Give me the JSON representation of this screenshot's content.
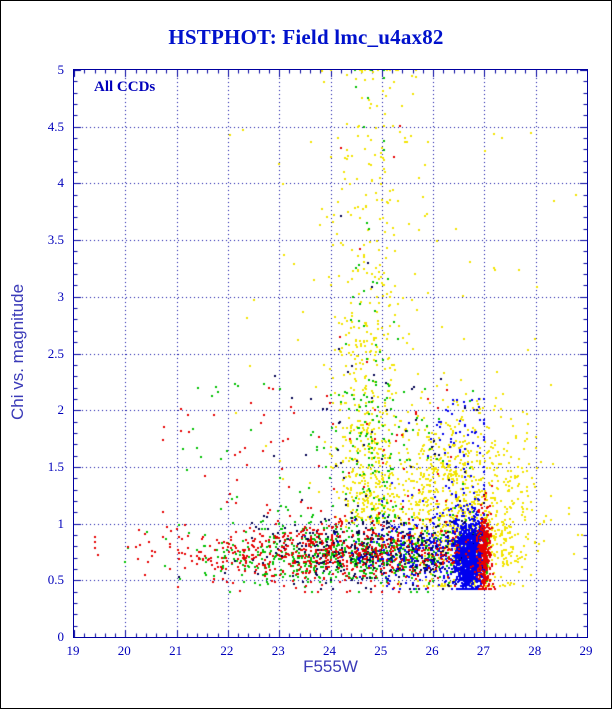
{
  "figure": {
    "background": "#ffffff",
    "border_color": "#000000"
  },
  "chart_data": {
    "type": "scatter",
    "title": "HSTPHOT: Field lmc_u4ax82",
    "annotation": "All CCDs",
    "xlabel": "F555W",
    "ylabel": "Chi vs. magnitude",
    "xlim": [
      19,
      29
    ],
    "ylim": [
      0,
      5
    ],
    "x_tick_labels": [
      "19",
      "20",
      "21",
      "22",
      "23",
      "24",
      "25",
      "26",
      "27",
      "28",
      "29"
    ],
    "y_tick_labels": [
      "0",
      "0.5",
      "1",
      "1.5",
      "2",
      "2.5",
      "3",
      "3.5",
      "4",
      "4.5",
      "5"
    ],
    "grid": "dotted",
    "legend_position": "none",
    "title_color": "#0011cc",
    "frame_color": "#0000a0",
    "grid_color": "#0000a0",
    "tick_label_color": "#0000bb",
    "axis_label_color": "#3a3ab8",
    "point_size": 2,
    "seed": 7,
    "series": [
      {
        "name": "ccd-yellow",
        "color": "#f2e400",
        "clusters": [
          {
            "n": 500,
            "x": {
              "dist": "normal",
              "mean": 24.75,
              "sd": 0.33,
              "min": 23.6,
              "max": 26.0
            },
            "y": {
              "dist": "expo",
              "min": 1.0,
              "scale": 1.1,
              "max": 5.0
            }
          },
          {
            "n": 100,
            "x": {
              "dist": "normal",
              "mean": 24.8,
              "sd": 0.5,
              "min": 23.5,
              "max": 26.2
            },
            "y": {
              "dist": "uniform",
              "min": 2.5,
              "max": 5.0
            }
          },
          {
            "n": 900,
            "x": {
              "dist": "normal",
              "mean": 26.5,
              "sd": 0.75,
              "min": 24.3,
              "max": 28.9
            },
            "y": {
              "dist": "normal",
              "mean": 1.25,
              "sd": 0.38,
              "min": 0.45,
              "max": 2.6
            }
          },
          {
            "n": 250,
            "x": {
              "dist": "normal",
              "mean": 26.9,
              "sd": 0.45,
              "min": 25.5,
              "max": 28.2
            },
            "y": {
              "dist": "normal",
              "mean": 0.8,
              "sd": 0.18,
              "min": 0.45,
              "max": 1.3
            }
          },
          {
            "n": 60,
            "x": {
              "dist": "uniform",
              "min": 22.0,
              "max": 28.8
            },
            "y": {
              "dist": "uniform",
              "min": 1.3,
              "max": 4.6
            }
          }
        ]
      },
      {
        "name": "ccd-green",
        "color": "#00c000",
        "clusters": [
          {
            "n": 750,
            "x": {
              "dist": "normal",
              "mean": 24.6,
              "sd": 1.5,
              "min": 19.8,
              "max": 27.05
            },
            "y": {
              "dist": "normal",
              "mean": 0.73,
              "sd": 0.13,
              "min": 0.4,
              "max": 1.15
            }
          },
          {
            "n": 130,
            "x": {
              "dist": "normal",
              "mean": 24.85,
              "sd": 0.3,
              "min": 24.0,
              "max": 25.6
            },
            "y": {
              "dist": "expo",
              "min": 1.0,
              "scale": 1.2,
              "max": 5.0
            }
          },
          {
            "n": 80,
            "x": {
              "dist": "uniform",
              "min": 21.0,
              "max": 26.8
            },
            "y": {
              "dist": "uniform",
              "min": 1.0,
              "max": 2.3
            }
          }
        ]
      },
      {
        "name": "ccd-dark",
        "color": "#000050",
        "clusters": [
          {
            "n": 450,
            "x": {
              "dist": "normal",
              "mean": 25.2,
              "sd": 1.3,
              "min": 21.0,
              "max": 27.0
            },
            "y": {
              "dist": "normal",
              "mean": 0.76,
              "sd": 0.15,
              "min": 0.42,
              "max": 1.25
            }
          },
          {
            "n": 50,
            "x": {
              "dist": "uniform",
              "min": 22.5,
              "max": 26.9
            },
            "y": {
              "dist": "uniform",
              "min": 1.0,
              "max": 2.4
            }
          },
          {
            "n": 4,
            "x": {
              "dist": "uniform",
              "min": 23.8,
              "max": 26.0
            },
            "y": {
              "dist": "uniform",
              "min": 2.5,
              "max": 4.1
            }
          }
        ]
      },
      {
        "name": "ccd-blue",
        "color": "#0000ee",
        "clusters": [
          {
            "n": 1200,
            "x": {
              "dist": "normal",
              "mean": 26.72,
              "sd": 0.15,
              "min": 26.1,
              "max": 27.0
            },
            "y": {
              "dist": "normal",
              "mean": 0.72,
              "sd": 0.17,
              "min": 0.42,
              "max": 1.35
            }
          },
          {
            "n": 300,
            "x": {
              "dist": "normal",
              "mean": 25.9,
              "sd": 0.7,
              "min": 23.5,
              "max": 27.0
            },
            "y": {
              "dist": "normal",
              "mean": 0.75,
              "sd": 0.15,
              "min": 0.42,
              "max": 1.2
            }
          },
          {
            "n": 90,
            "x": {
              "dist": "normal",
              "mean": 26.4,
              "sd": 0.45,
              "min": 25.2,
              "max": 27.0
            },
            "y": {
              "dist": "uniform",
              "min": 1.05,
              "max": 2.1
            }
          }
        ]
      },
      {
        "name": "ccd-red",
        "color": "#e60000",
        "clusters": [
          {
            "n": 700,
            "x": {
              "dist": "normal",
              "mean": 24.2,
              "sd": 1.7,
              "min": 19.4,
              "max": 27.0
            },
            "y": {
              "dist": "normal",
              "mean": 0.74,
              "sd": 0.14,
              "min": 0.4,
              "max": 1.2
            }
          },
          {
            "n": 260,
            "x": {
              "dist": "normal",
              "mean": 27.0,
              "sd": 0.07,
              "min": 26.85,
              "max": 27.2
            },
            "y": {
              "dist": "normal",
              "mean": 0.75,
              "sd": 0.2,
              "min": 0.42,
              "max": 1.4
            }
          },
          {
            "n": 70,
            "x": {
              "dist": "uniform",
              "min": 20.5,
              "max": 26.5
            },
            "y": {
              "dist": "uniform",
              "min": 1.0,
              "max": 2.2
            }
          },
          {
            "n": 6,
            "x": {
              "dist": "uniform",
              "min": 23.5,
              "max": 25.5
            },
            "y": {
              "dist": "uniform",
              "min": 2.3,
              "max": 4.7
            }
          }
        ]
      }
    ]
  }
}
